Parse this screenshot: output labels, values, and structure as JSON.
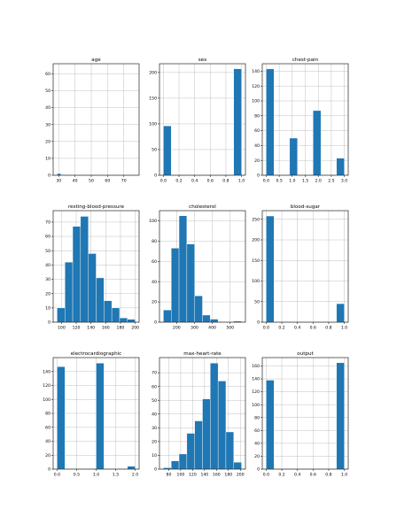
{
  "chart_data": [
    {
      "type": "bar",
      "title": "age",
      "bins": [
        29,
        31.4,
        33.8,
        36.2,
        38.6,
        41,
        43.4,
        45.8,
        48.2,
        50.6,
        53,
        55.4,
        57.8,
        60.2,
        62.6,
        65,
        67.4,
        69.8,
        72.2,
        74.6,
        77
      ],
      "counts": [
        1,
        0,
        0,
        0,
        0,
        0,
        0,
        0,
        0,
        0,
        0,
        0,
        0,
        0,
        0,
        0,
        0,
        0,
        0,
        0
      ],
      "xlim": [
        26.6,
        79.4
      ],
      "ylim": [
        0,
        66
      ],
      "xticks": [
        30,
        40,
        50,
        60,
        70
      ],
      "yticks": [
        0,
        10,
        20,
        30,
        40,
        50,
        60
      ],
      "grid": true
    },
    {
      "type": "bar",
      "title": "sex",
      "bins": [
        0,
        0.1,
        0.2,
        0.3,
        0.4,
        0.5,
        0.6,
        0.7,
        0.8,
        0.9,
        1.0
      ],
      "counts": [
        96,
        0,
        0,
        0,
        0,
        0,
        0,
        0,
        0,
        207
      ],
      "xlim": [
        -0.05,
        1.05
      ],
      "ylim": [
        0,
        217
      ],
      "xticks": [
        0.0,
        0.2,
        0.4,
        0.6,
        0.8,
        1.0
      ],
      "yticks": [
        0,
        50,
        100,
        150,
        200
      ],
      "grid": true
    },
    {
      "type": "bar",
      "title": "chest-pain",
      "bins": [
        0,
        0.3,
        0.6,
        0.9,
        1.2,
        1.5,
        1.8,
        2.1,
        2.4,
        2.7,
        3.0
      ],
      "counts": [
        143,
        0,
        0,
        50,
        0,
        0,
        87,
        0,
        0,
        23
      ],
      "xlim": [
        -0.15,
        3.15
      ],
      "ylim": [
        0,
        150
      ],
      "xticks": [
        0.0,
        0.5,
        1.0,
        1.5,
        2.0,
        2.5,
        3.0
      ],
      "yticks": [
        0,
        20,
        40,
        60,
        80,
        100,
        120,
        140
      ],
      "grid": true
    },
    {
      "type": "bar",
      "title": "resting-blood-pressure",
      "bins": [
        94,
        104.6,
        115.2,
        125.8,
        136.4,
        147,
        157.6,
        168.2,
        178.8,
        189.4,
        200
      ],
      "counts": [
        10,
        42,
        67,
        74,
        48,
        31,
        15,
        10,
        3,
        2
      ],
      "xlim": [
        88.7,
        205.3
      ],
      "ylim": [
        0,
        78
      ],
      "xticks": [
        100,
        120,
        140,
        160,
        180,
        200
      ],
      "yticks": [
        0,
        10,
        20,
        30,
        40,
        50,
        60,
        70
      ],
      "grid": true
    },
    {
      "type": "bar",
      "title": "cholesterol",
      "bins": [
        126,
        169.8,
        213.6,
        257.4,
        301.2,
        345,
        388.8,
        432.6,
        476.4,
        520.2,
        564
      ],
      "counts": [
        12,
        73,
        105,
        77,
        26,
        7,
        3,
        0,
        0,
        1
      ],
      "xlim": [
        104.1,
        585.9
      ],
      "ylim": [
        0,
        110
      ],
      "xticks": [
        200,
        300,
        400,
        500
      ],
      "yticks": [
        0,
        20,
        40,
        60,
        80,
        100
      ],
      "grid": true
    },
    {
      "type": "bar",
      "title": "blood-sugar",
      "bins": [
        0,
        0.1,
        0.2,
        0.3,
        0.4,
        0.5,
        0.6,
        0.7,
        0.8,
        0.9,
        1.0
      ],
      "counts": [
        258,
        0,
        0,
        0,
        0,
        0,
        0,
        0,
        0,
        45
      ],
      "xlim": [
        -0.05,
        1.05
      ],
      "ylim": [
        0,
        271
      ],
      "xticks": [
        0.0,
        0.2,
        0.4,
        0.6,
        0.8,
        1.0
      ],
      "yticks": [
        0,
        50,
        100,
        150,
        200,
        250
      ],
      "grid": true
    },
    {
      "type": "bar",
      "title": "electrocardiographic",
      "bins": [
        0,
        0.2,
        0.4,
        0.6,
        0.8,
        1.0,
        1.2,
        1.4,
        1.6,
        1.8,
        2.0
      ],
      "counts": [
        147,
        0,
        0,
        0,
        0,
        152,
        0,
        0,
        0,
        4
      ],
      "xlim": [
        -0.1,
        2.1
      ],
      "ylim": [
        0,
        160
      ],
      "xticks": [
        0.0,
        0.5,
        1.0,
        1.5,
        2.0
      ],
      "yticks": [
        0,
        20,
        40,
        60,
        80,
        100,
        120,
        140
      ],
      "grid": true
    },
    {
      "type": "bar",
      "title": "max-heart-rate",
      "bins": [
        71,
        84.1,
        97.2,
        110.3,
        123.4,
        136.5,
        149.6,
        162.7,
        175.8,
        188.9,
        202
      ],
      "counts": [
        1,
        6,
        11,
        26,
        35,
        51,
        77,
        64,
        27,
        5
      ],
      "xlim": [
        64.45,
        208.55
      ],
      "ylim": [
        0,
        81
      ],
      "xticks": [
        80,
        100,
        120,
        140,
        160,
        180,
        200
      ],
      "yticks": [
        0,
        10,
        20,
        30,
        40,
        50,
        60,
        70
      ],
      "grid": true
    },
    {
      "type": "bar",
      "title": "output",
      "bins": [
        0,
        0.1,
        0.2,
        0.3,
        0.4,
        0.5,
        0.6,
        0.7,
        0.8,
        0.9,
        1.0
      ],
      "counts": [
        138,
        0,
        0,
        0,
        0,
        0,
        0,
        0,
        0,
        165
      ],
      "xlim": [
        -0.05,
        1.05
      ],
      "ylim": [
        0,
        173
      ],
      "xticks": [
        0.0,
        0.2,
        0.4,
        0.6,
        0.8,
        1.0
      ],
      "yticks": [
        0,
        20,
        40,
        60,
        80,
        100,
        120,
        140,
        160
      ],
      "grid": true
    }
  ]
}
